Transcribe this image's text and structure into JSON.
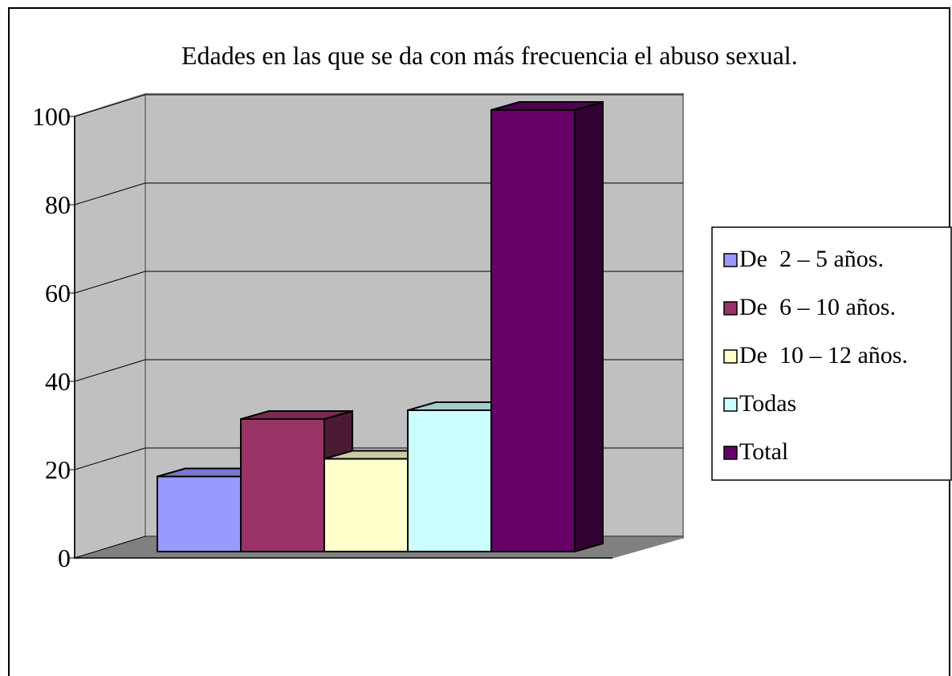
{
  "chart_data": {
    "type": "bar3d",
    "title": "Edades en las que se da con más frecuencia el abuso sexual.",
    "series": [
      {
        "name": "De  2 – 5 años.",
        "color": "#9999ff",
        "values": [
          17
        ]
      },
      {
        "name": "De  6 – 10 años.",
        "color": "#993366",
        "values": [
          30
        ]
      },
      {
        "name": "De  10 – 12 años.",
        "color": "#ffffcc",
        "values": [
          21
        ]
      },
      {
        "name": "Todas",
        "color": "#ccffff",
        "values": [
          32
        ]
      },
      {
        "name": "Total",
        "color": "#660066",
        "values": [
          100
        ]
      }
    ],
    "ylim": [
      0,
      100
    ],
    "yticks": [
      0,
      20,
      40,
      60,
      80,
      100
    ],
    "grid": true,
    "legend": "right"
  }
}
